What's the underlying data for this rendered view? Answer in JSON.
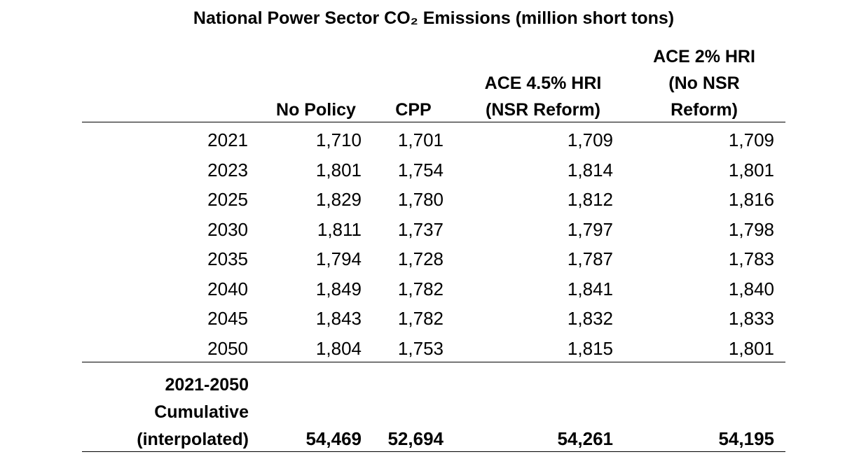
{
  "chart_data": {
    "type": "table",
    "title": "National Power Sector CO₂ Emissions (million short tons)",
    "columns": [
      "No Policy",
      "CPP",
      "ACE 4.5% HRI\n(NSR Reform)",
      "ACE 2% HRI\n(No NSR\nReform)"
    ],
    "rows": [
      {
        "year": "2021",
        "values": [
          "1,710",
          "1,701",
          "1,709",
          "1,709"
        ]
      },
      {
        "year": "2023",
        "values": [
          "1,801",
          "1,754",
          "1,814",
          "1,801"
        ]
      },
      {
        "year": "2025",
        "values": [
          "1,829",
          "1,780",
          "1,812",
          "1,816"
        ]
      },
      {
        "year": "2030",
        "values": [
          "1,811",
          "1,737",
          "1,797",
          "1,798"
        ]
      },
      {
        "year": "2035",
        "values": [
          "1,794",
          "1,728",
          "1,787",
          "1,783"
        ]
      },
      {
        "year": "2040",
        "values": [
          "1,849",
          "1,782",
          "1,841",
          "1,840"
        ]
      },
      {
        "year": "2045",
        "values": [
          "1,843",
          "1,782",
          "1,832",
          "1,833"
        ]
      },
      {
        "year": "2050",
        "values": [
          "1,804",
          "1,753",
          "1,815",
          "1,801"
        ]
      }
    ],
    "total": {
      "label": "2021-2050\nCumulative\n(interpolated)",
      "values": [
        "54,469",
        "52,694",
        "54,261",
        "54,195"
      ]
    }
  }
}
